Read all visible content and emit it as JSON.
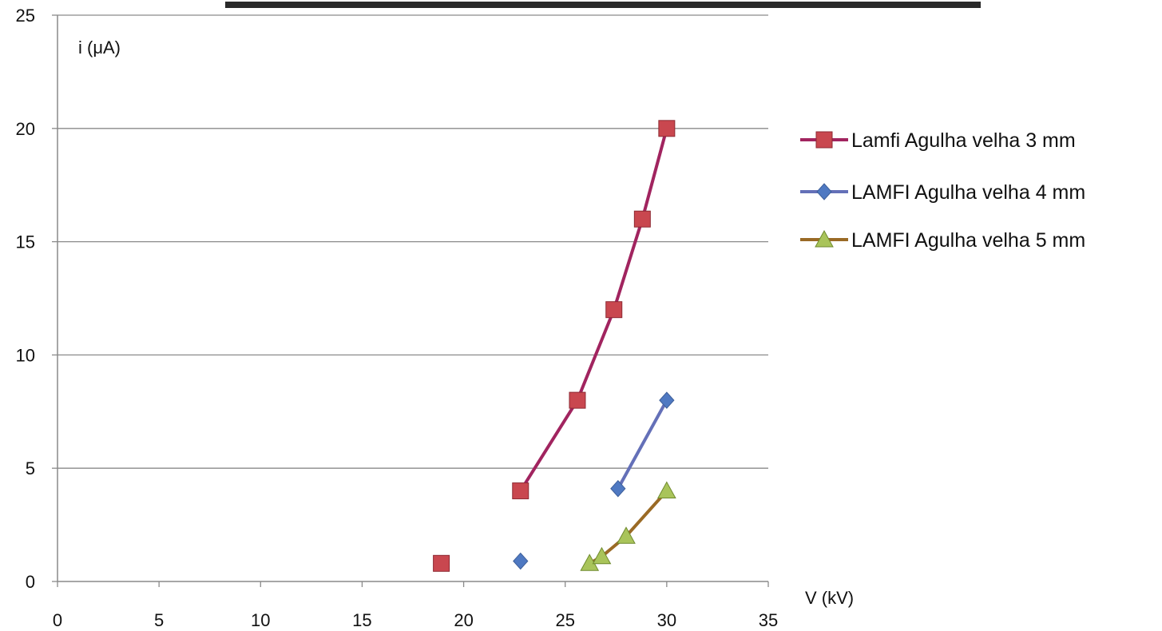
{
  "chart_data": {
    "type": "scatter",
    "title": "",
    "xlabel": "V (kV)",
    "ylabel": "i (μA)",
    "xlim": [
      0,
      35
    ],
    "ylim": [
      0,
      25
    ],
    "x_ticks": [
      0,
      5,
      10,
      15,
      20,
      25,
      30,
      35
    ],
    "y_ticks": [
      0,
      5,
      10,
      15,
      20,
      25
    ],
    "grid": "horizontal",
    "legend_position": "right",
    "series": [
      {
        "name": "Lamfi Agulha velha 3 mm",
        "color": "#a1245f",
        "marker": "square",
        "marker_color": "#c9474f",
        "points": [
          {
            "x": 18.9,
            "y": 0.8
          },
          {
            "x": 22.8,
            "y": 4
          },
          {
            "x": 25.6,
            "y": 8
          },
          {
            "x": 27.4,
            "y": 12
          },
          {
            "x": 28.8,
            "y": 16
          },
          {
            "x": 30,
            "y": 20
          }
        ],
        "line_from_index": 1
      },
      {
        "name": "LAMFI Agulha velha 4 mm",
        "color": "#6470b8",
        "marker": "diamond",
        "marker_color": "#4f79c2",
        "points": [
          {
            "x": 22.8,
            "y": 0.9
          },
          {
            "x": 27.6,
            "y": 4.1
          },
          {
            "x": 30,
            "y": 8
          }
        ],
        "line_from_index": 1
      },
      {
        "name": "LAMFI Agulha velha 5 mm",
        "color": "#9a6a25",
        "marker": "triangle",
        "marker_color": "#a9c45a",
        "points": [
          {
            "x": 26.2,
            "y": 0.8
          },
          {
            "x": 26.8,
            "y": 1.1
          },
          {
            "x": 28,
            "y": 2
          },
          {
            "x": 30,
            "y": 4
          }
        ],
        "line_from_index": 0
      }
    ]
  }
}
